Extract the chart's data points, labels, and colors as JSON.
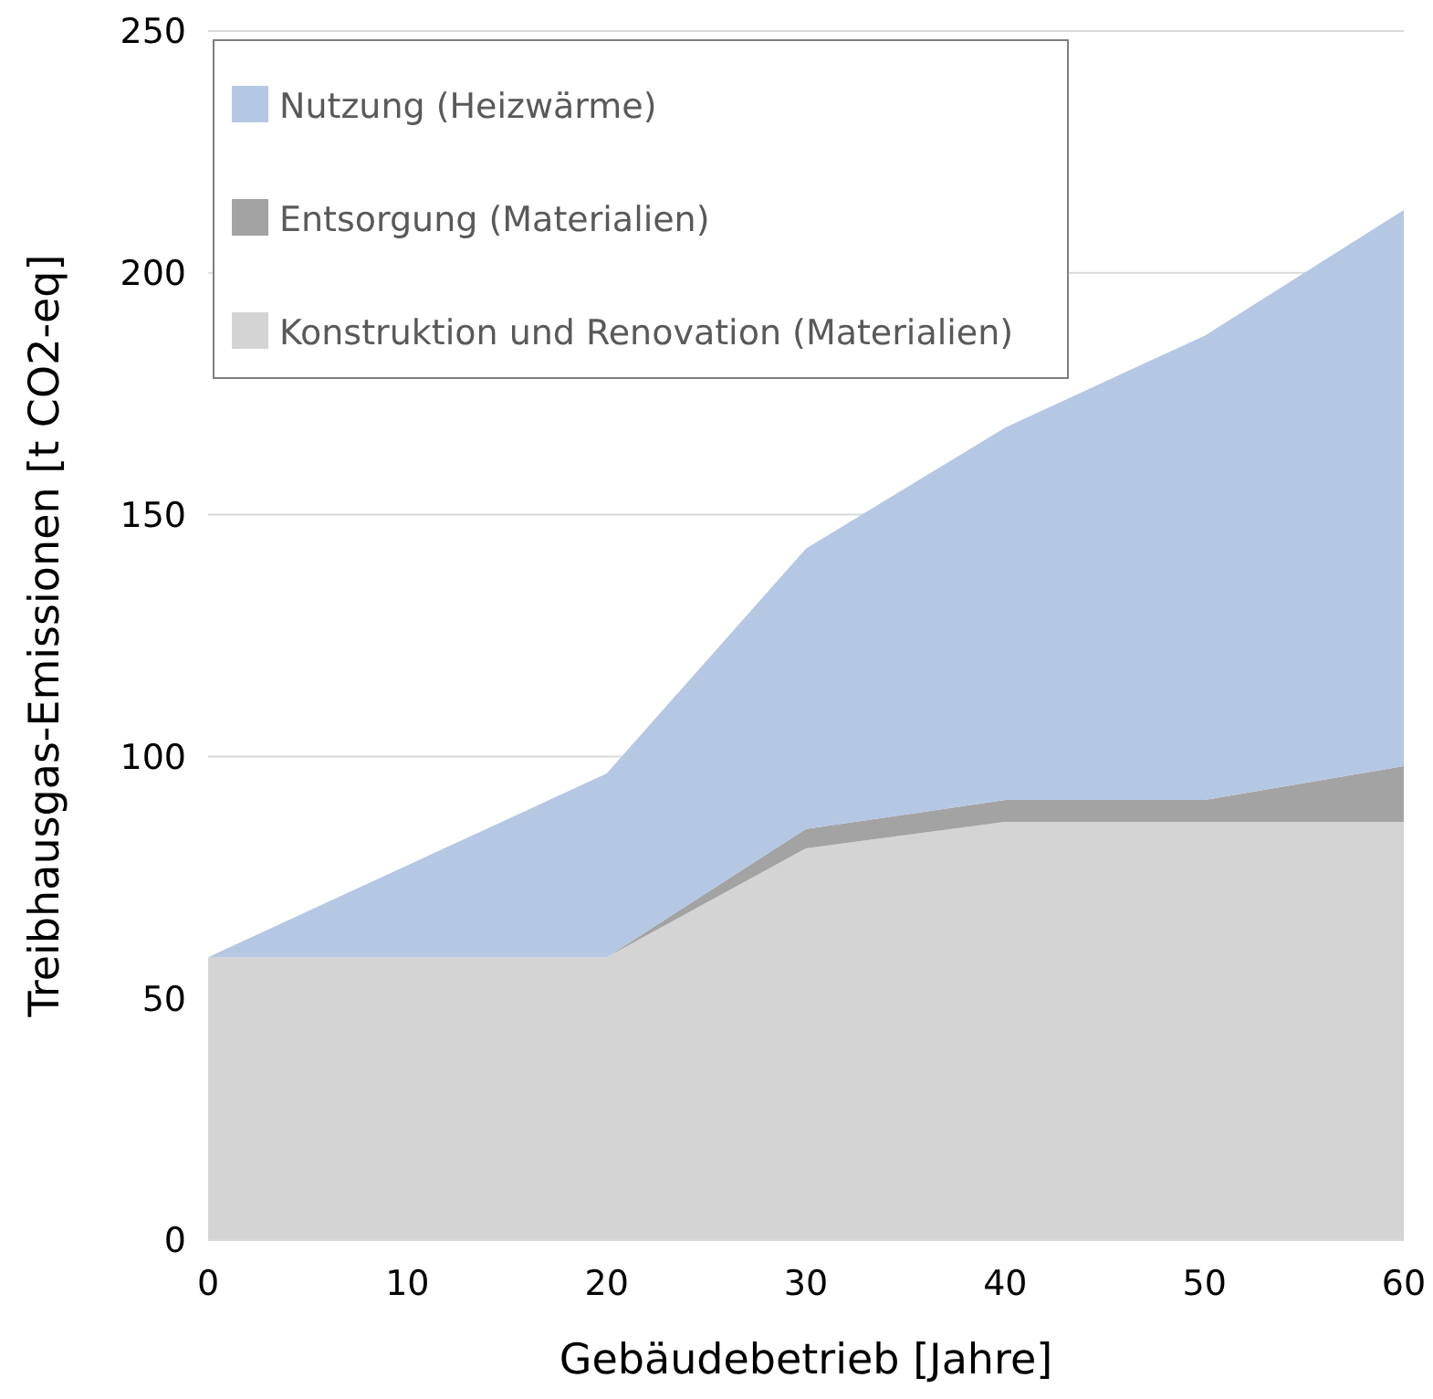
{
  "chart_data": {
    "type": "area",
    "stacked": true,
    "xlabel": "Gebäudebetrieb [Jahre]",
    "ylabel": "Treibhausgas-Emissionen [t CO2-eq]",
    "x": [
      0,
      20,
      30,
      40,
      50,
      60
    ],
    "series": [
      {
        "name": "Konstruktion und Renovation (Materialien)",
        "color": "#d4d4d4",
        "values": [
          58.5,
          58.5,
          81,
          86.5,
          86.5,
          86.5
        ]
      },
      {
        "name": "Entsorgung (Materialien)",
        "color": "#a3a3a3",
        "values": [
          0,
          0,
          4,
          4.5,
          4.5,
          11.5
        ]
      },
      {
        "name": "Nutzung (Heizwärme)",
        "color": "#b4c8e4",
        "values": [
          0,
          38,
          58,
          77,
          96,
          115
        ]
      }
    ],
    "xlim": [
      0,
      60
    ],
    "xticks": [
      0,
      10,
      20,
      30,
      40,
      50,
      60
    ],
    "ylim": [
      0,
      250
    ],
    "yticks": [
      0,
      50,
      100,
      150,
      200,
      250
    ],
    "grid": "y",
    "legend": "top left"
  }
}
